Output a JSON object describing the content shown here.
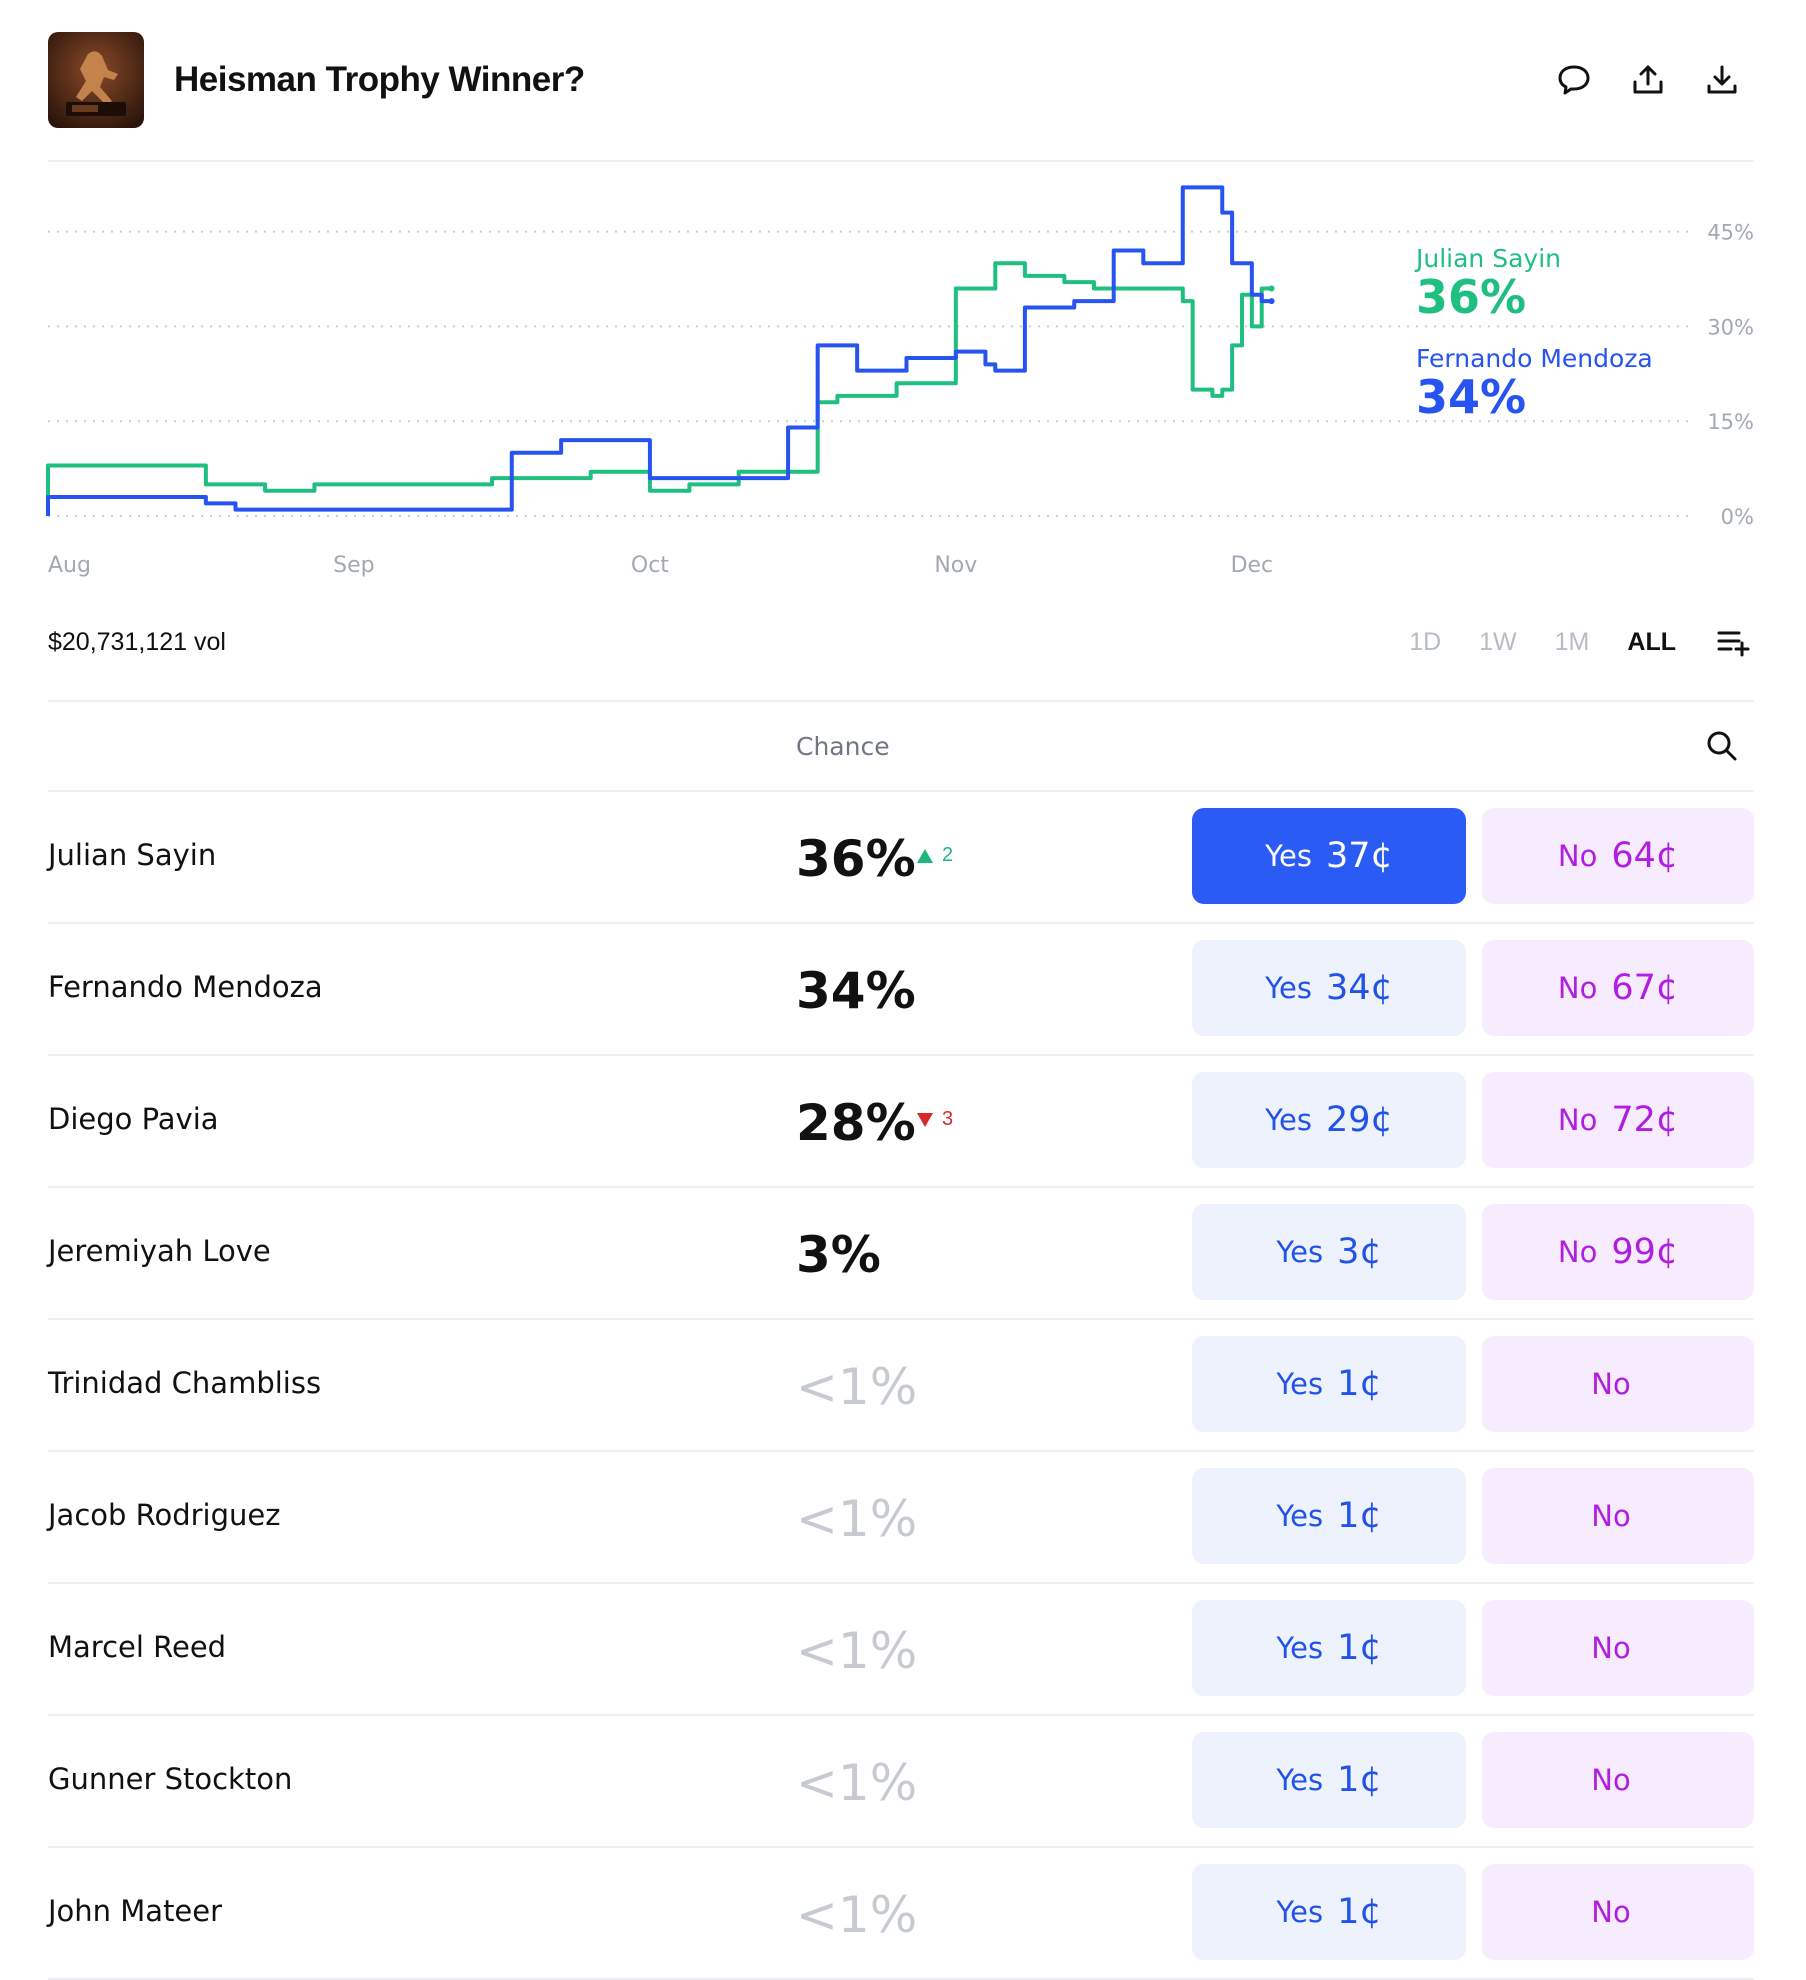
{
  "header": {
    "title": "Heisman Trophy Winner?",
    "icons": [
      "comment-icon",
      "share-icon",
      "download-icon"
    ]
  },
  "chart_data": {
    "type": "line",
    "x_ticks": [
      "Aug",
      "Sep",
      "Oct",
      "Nov",
      "Dec"
    ],
    "y_ticks": [
      "45%",
      "30%",
      "15%",
      "0%"
    ],
    "ylim": [
      0,
      50
    ],
    "grid": true,
    "series": [
      {
        "name": "Julian Sayin",
        "color": "#1fbf7f",
        "end_label": "36%",
        "x": [
          "Aug 1",
          "Aug 16",
          "Aug 17",
          "Aug 23",
          "Aug 28",
          "Sep 5",
          "Sep 15",
          "Sep 25",
          "Oct 1",
          "Oct 5",
          "Oct 10",
          "Oct 15",
          "Oct 18",
          "Oct 20",
          "Oct 26",
          "Nov 1",
          "Nov 5",
          "Nov 8",
          "Nov 12",
          "Nov 15",
          "Nov 24",
          "Nov 25",
          "Nov 27",
          "Nov 28",
          "Nov 29",
          "Nov 30",
          "Dec 1",
          "Dec 2",
          "Dec 3"
        ],
        "y": [
          8,
          8,
          5,
          4,
          5,
          5,
          6,
          7,
          4,
          5,
          7,
          7,
          18,
          19,
          21,
          36,
          40,
          38,
          37,
          36,
          34,
          20,
          19,
          20,
          27,
          35,
          30,
          36,
          36
        ]
      },
      {
        "name": "Fernando Mendoza",
        "color": "#2753f0",
        "end_label": "34%",
        "x": [
          "Aug 1",
          "Aug 16",
          "Aug 17",
          "Aug 20",
          "Aug 25",
          "Sep 10",
          "Sep 15",
          "Sep 17",
          "Sep 22",
          "Oct 1",
          "Oct 8",
          "Oct 15",
          "Oct 18",
          "Oct 22",
          "Oct 27",
          "Nov 1",
          "Nov 4",
          "Nov 5",
          "Nov 8",
          "Nov 13",
          "Nov 17",
          "Nov 20",
          "Nov 24",
          "Nov 28",
          "Nov 29",
          "Dec 1",
          "Dec 2",
          "Dec 3"
        ],
        "y": [
          3,
          3,
          2,
          1,
          1,
          1,
          1,
          10,
          12,
          6,
          6,
          14,
          27,
          23,
          25,
          26,
          24,
          23,
          33,
          34,
          42,
          40,
          52,
          48,
          40,
          35,
          34,
          34
        ]
      }
    ]
  },
  "volume": "$20,731,121 vol",
  "ranges": [
    {
      "label": "1D",
      "active": false
    },
    {
      "label": "1W",
      "active": false
    },
    {
      "label": "1M",
      "active": false
    },
    {
      "label": "ALL",
      "active": true
    }
  ],
  "table": {
    "column_header": "Chance",
    "rows": [
      {
        "name": "Julian Sayin",
        "chance": "36%",
        "muted": false,
        "delta": "2",
        "delta_dir": "up",
        "yes_label": "Yes",
        "yes_price": "37¢",
        "no_label": "No",
        "no_price": "64¢",
        "primary": true
      },
      {
        "name": "Fernando Mendoza",
        "chance": "34%",
        "muted": false,
        "delta": "",
        "delta_dir": "",
        "yes_label": "Yes",
        "yes_price": "34¢",
        "no_label": "No",
        "no_price": "67¢",
        "primary": false
      },
      {
        "name": "Diego Pavia",
        "chance": "28%",
        "muted": false,
        "delta": "3",
        "delta_dir": "down",
        "yes_label": "Yes",
        "yes_price": "29¢",
        "no_label": "No",
        "no_price": "72¢",
        "primary": false
      },
      {
        "name": "Jeremiyah Love",
        "chance": "3%",
        "muted": false,
        "delta": "",
        "delta_dir": "",
        "yes_label": "Yes",
        "yes_price": "3¢",
        "no_label": "No",
        "no_price": "99¢",
        "primary": false
      },
      {
        "name": "Trinidad Chambliss",
        "chance": "<1%",
        "muted": true,
        "delta": "",
        "delta_dir": "",
        "yes_label": "Yes",
        "yes_price": "1¢",
        "no_label": "No",
        "no_price": "",
        "primary": false
      },
      {
        "name": "Jacob Rodriguez",
        "chance": "<1%",
        "muted": true,
        "delta": "",
        "delta_dir": "",
        "yes_label": "Yes",
        "yes_price": "1¢",
        "no_label": "No",
        "no_price": "",
        "primary": false
      },
      {
        "name": "Marcel Reed",
        "chance": "<1%",
        "muted": true,
        "delta": "",
        "delta_dir": "",
        "yes_label": "Yes",
        "yes_price": "1¢",
        "no_label": "No",
        "no_price": "",
        "primary": false
      },
      {
        "name": "Gunner Stockton",
        "chance": "<1%",
        "muted": true,
        "delta": "",
        "delta_dir": "",
        "yes_label": "Yes",
        "yes_price": "1¢",
        "no_label": "No",
        "no_price": "",
        "primary": false
      },
      {
        "name": "John Mateer",
        "chance": "<1%",
        "muted": true,
        "delta": "",
        "delta_dir": "",
        "yes_label": "Yes",
        "yes_price": "1¢",
        "no_label": "No",
        "no_price": "",
        "primary": false
      }
    ]
  }
}
